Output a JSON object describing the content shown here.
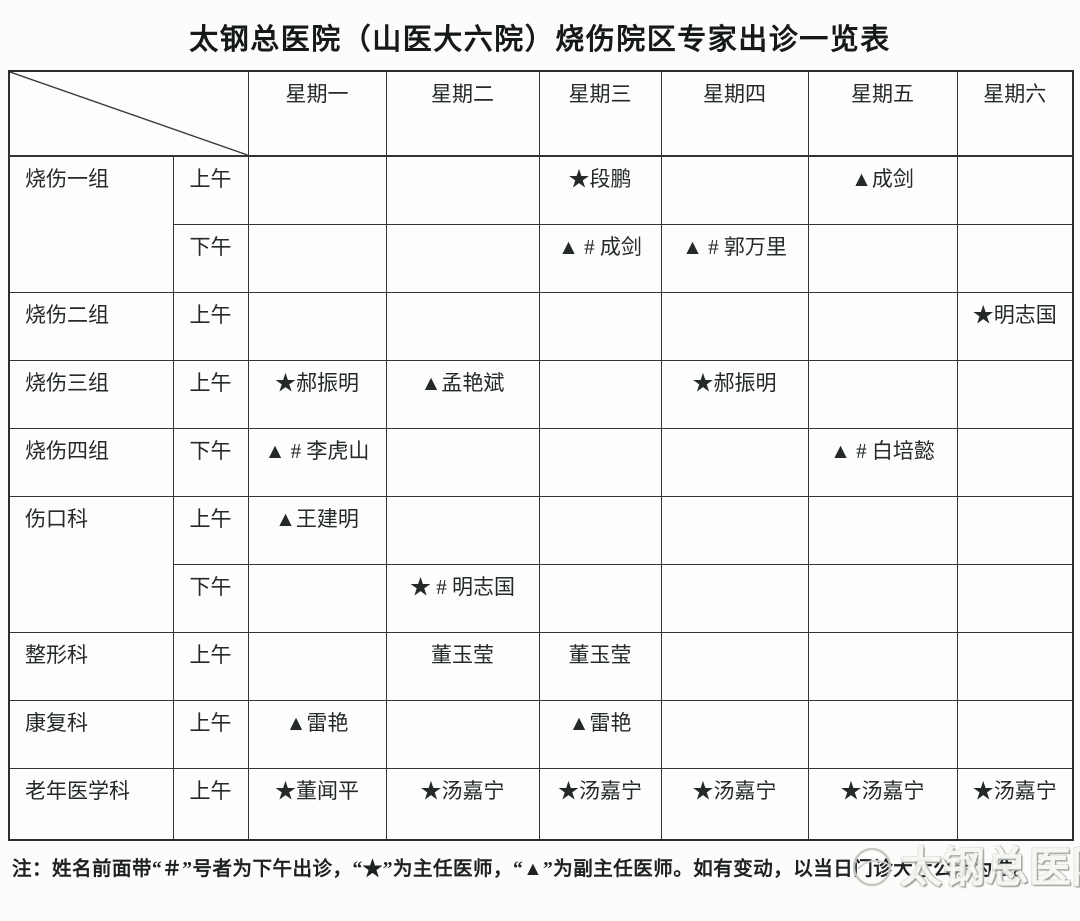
{
  "page": {
    "title": "太钢总医院（山医大六院）烧伤院区专家出诊一览表",
    "note": "注：姓名前面带“＃”号者为下午出诊，“★”为主任医师，“▲”为副主任医师。如有变动，以当日门诊大厅公示为准。",
    "watermark": "太钢总医院"
  },
  "legend": {
    "hash_symbol": "＃",
    "hash_meaning": "下午出诊",
    "star_symbol": "★",
    "star_meaning": "主任医师",
    "triangle_symbol": "▲",
    "triangle_meaning": "副主任医师"
  },
  "schedule": {
    "day_headers": [
      "星期一",
      "星期二",
      "星期三",
      "星期四",
      "星期五",
      "星期六"
    ],
    "groups": [
      {
        "department": "烧伤一组",
        "sessions": [
          {
            "time": "上午",
            "cells": [
              "",
              "",
              "★段鹏",
              "",
              "▲成剑",
              ""
            ]
          },
          {
            "time": "下午",
            "cells": [
              "",
              "",
              "▲ # 成剑",
              "▲ # 郭万里",
              "",
              ""
            ]
          }
        ]
      },
      {
        "department": "烧伤二组",
        "sessions": [
          {
            "time": "上午",
            "cells": [
              "",
              "",
              "",
              "",
              "",
              "★明志国"
            ]
          }
        ]
      },
      {
        "department": "烧伤三组",
        "sessions": [
          {
            "time": "上午",
            "cells": [
              "★郝振明",
              "▲孟艳斌",
              "",
              "★郝振明",
              "",
              ""
            ]
          }
        ]
      },
      {
        "department": "烧伤四组",
        "sessions": [
          {
            "time": "下午",
            "cells": [
              "▲ # 李虎山",
              "",
              "",
              "",
              "▲ # 白培懿",
              ""
            ]
          }
        ]
      },
      {
        "department": "伤口科",
        "sessions": [
          {
            "time": "上午",
            "cells": [
              "▲王建明",
              "",
              "",
              "",
              "",
              ""
            ]
          },
          {
            "time": "下午",
            "cells": [
              "",
              "★ # 明志国",
              "",
              "",
              "",
              ""
            ]
          }
        ]
      },
      {
        "department": "整形科",
        "sessions": [
          {
            "time": "上午",
            "cells": [
              "",
              "董玉莹",
              "董玉莹",
              "",
              "",
              ""
            ]
          }
        ]
      },
      {
        "department": "康复科",
        "sessions": [
          {
            "time": "上午",
            "cells": [
              "▲雷艳",
              "",
              "▲雷艳",
              "",
              "",
              ""
            ]
          }
        ]
      },
      {
        "department": "老年医学科",
        "sessions": [
          {
            "time": "上午",
            "cells": [
              "★董闻平",
              "★汤嘉宁",
              "★汤嘉宁",
              "★汤嘉宁",
              "★汤嘉宁",
              "★汤嘉宁"
            ]
          }
        ]
      }
    ]
  }
}
